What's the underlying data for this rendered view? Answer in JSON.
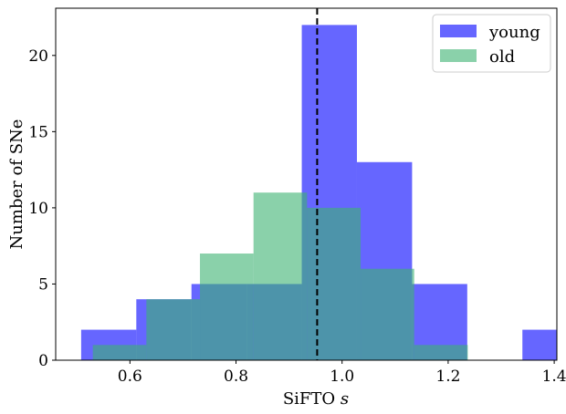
{
  "chart_data": {
    "type": "histogram",
    "xlabel": "SiFTO",
    "xlabel_var": "s",
    "ylabel": "Number of SNe",
    "xlim": [
      0.46,
      1.405
    ],
    "ylim": [
      0,
      23.1
    ],
    "xticks": [
      0.6,
      0.8,
      1.0,
      1.2,
      1.4
    ],
    "xtick_labels": [
      "0.6",
      "0.8",
      "1.0",
      "1.2",
      "1.4"
    ],
    "yticks": [
      0,
      5,
      10,
      15,
      20
    ],
    "ytick_labels": [
      "0",
      "5",
      "10",
      "15",
      "20"
    ],
    "grid": false,
    "legend_position": "top-right",
    "reference_line": {
      "x": 0.953,
      "style": "dashed",
      "color": "#000000"
    },
    "series": [
      {
        "name": "young",
        "color": "#0000ff",
        "opacity": 0.6,
        "bins": [
          {
            "x0": 0.508,
            "x1": 0.612,
            "count": 2
          },
          {
            "x0": 0.612,
            "x1": 0.716,
            "count": 4
          },
          {
            "x0": 0.716,
            "x1": 0.82,
            "count": 5
          },
          {
            "x0": 0.82,
            "x1": 0.924,
            "count": 5
          },
          {
            "x0": 0.924,
            "x1": 1.028,
            "count": 22
          },
          {
            "x0": 1.028,
            "x1": 1.132,
            "count": 13
          },
          {
            "x0": 1.132,
            "x1": 1.236,
            "count": 5
          },
          {
            "x0": 1.236,
            "x1": 1.34,
            "count": 0
          },
          {
            "x0": 1.34,
            "x1": 1.444,
            "count": 2
          }
        ]
      },
      {
        "name": "old",
        "color": "#3cb371",
        "opacity": 0.6,
        "bins": [
          {
            "x0": 0.53,
            "x1": 0.631,
            "count": 1
          },
          {
            "x0": 0.631,
            "x1": 0.732,
            "count": 4
          },
          {
            "x0": 0.732,
            "x1": 0.833,
            "count": 7
          },
          {
            "x0": 0.833,
            "x1": 0.934,
            "count": 11
          },
          {
            "x0": 0.934,
            "x1": 1.035,
            "count": 10
          },
          {
            "x0": 1.035,
            "x1": 1.136,
            "count": 6
          },
          {
            "x0": 1.136,
            "x1": 1.237,
            "count": 1
          }
        ]
      }
    ]
  }
}
